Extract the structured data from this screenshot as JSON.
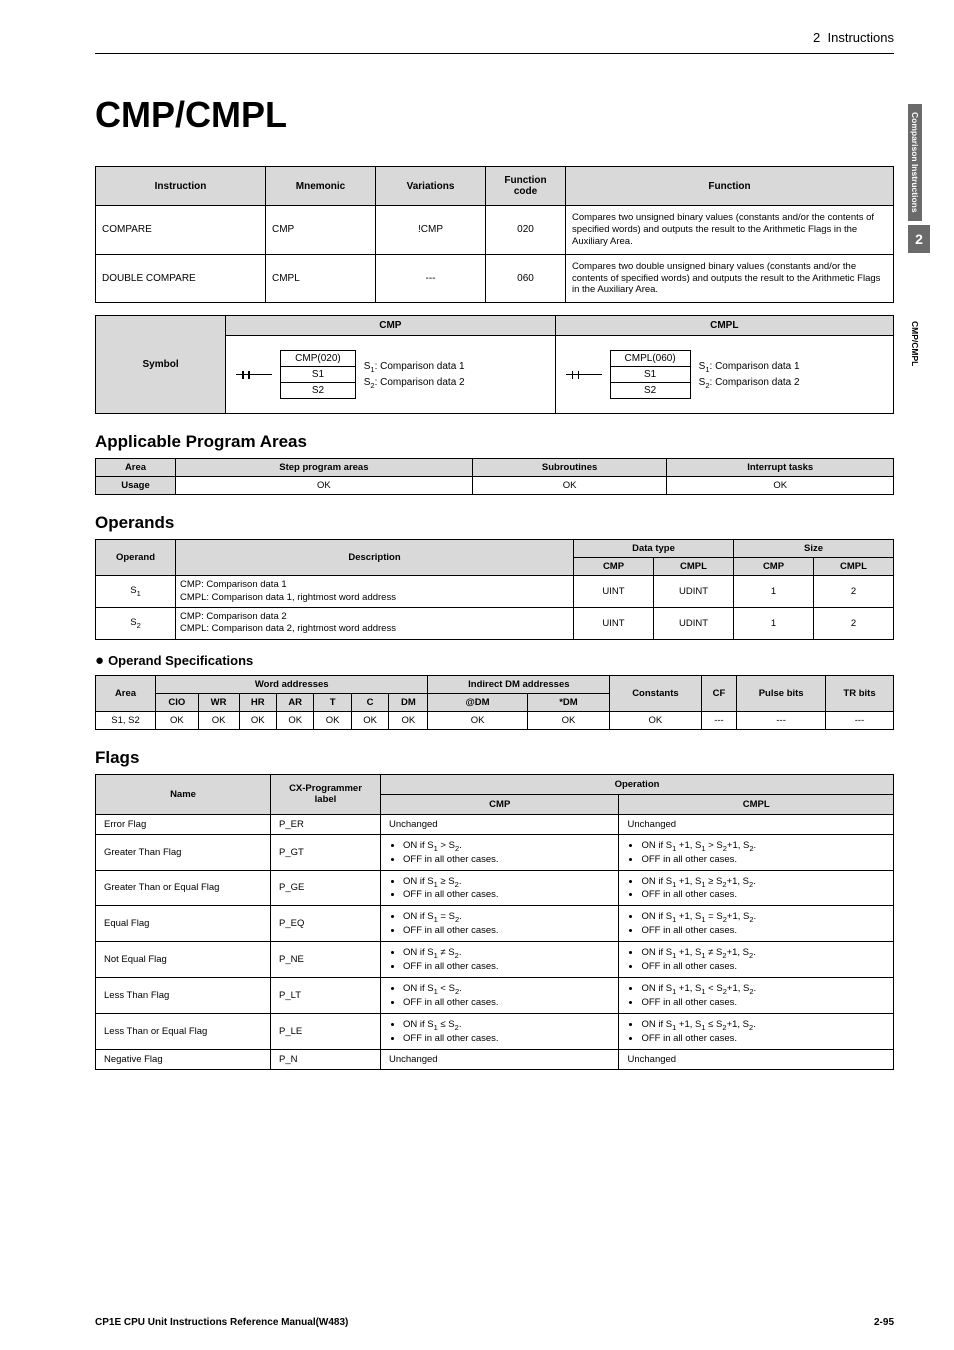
{
  "header": {
    "chapter": "2",
    "chapter_title": "Instructions"
  },
  "title": "CMP/CMPL",
  "side": {
    "group": "Comparison Instructions",
    "num": "2",
    "page_label": "CMP/CMPL"
  },
  "instr_table": {
    "headers": [
      "Instruction",
      "Mnemonic",
      "Variations",
      "Function code",
      "Function"
    ],
    "rows": [
      {
        "name": "COMPARE",
        "mnemonic": "CMP",
        "variation": "!CMP",
        "code": "020",
        "func": "Compares two unsigned binary values (constants and/or the contents of specified words) and outputs the result to the Arithmetic Flags in the Auxiliary Area."
      },
      {
        "name": "DOUBLE COMPARE",
        "mnemonic": "CMPL",
        "variation": "---",
        "code": "060",
        "func": "Compares two double unsigned binary values (constants and/or the contents of specified words) and outputs the result to the Arithmetic Flags in the Auxiliary Area."
      }
    ]
  },
  "symbol": {
    "title": "Symbol",
    "cmp_hdr": "CMP",
    "cmpl_hdr": "CMPL",
    "cmp_block": "CMP(020)",
    "cmpl_block": "CMPL(060)",
    "s1": "S1",
    "s2": "S2",
    "s1_label": "S1: Comparison data 1",
    "s2_label": "S2: Comparison data 2"
  },
  "sections": {
    "applicable": "Applicable Program Areas",
    "operands": "Operands",
    "opspec": "Operand Specifications",
    "flags": "Flags"
  },
  "applicable": {
    "headers": [
      "Area",
      "Step program areas",
      "Subroutines",
      "Interrupt tasks"
    ],
    "usage_label": "Usage",
    "values": [
      "OK",
      "OK",
      "OK"
    ]
  },
  "operands_table": {
    "headers": {
      "operand": "Operand",
      "desc": "Description",
      "dtype": "Data type",
      "size": "Size",
      "cmp": "CMP",
      "cmpl": "CMPL"
    },
    "rows": [
      {
        "op": "S1",
        "desc": "CMP: Comparison data 1\nCMPL: Comparison data 1, rightmost word address",
        "dt_cmp": "UINT",
        "dt_cmpl": "UDINT",
        "sz_cmp": "1",
        "sz_cmpl": "2"
      },
      {
        "op": "S2",
        "desc": "CMP: Comparison data 2\nCMPL: Comparison data 2, rightmost word address",
        "dt_cmp": "UINT",
        "dt_cmpl": "UDINT",
        "sz_cmp": "1",
        "sz_cmpl": "2"
      }
    ]
  },
  "opspec_table": {
    "group_headers": [
      "Area",
      "Word addresses",
      "Indirect DM addresses",
      "Constants",
      "CF",
      "Pulse bits",
      "TR bits"
    ],
    "sub_headers": [
      "CIO",
      "WR",
      "HR",
      "AR",
      "T",
      "C",
      "DM",
      "@DM",
      "*DM"
    ],
    "row_label": "S1, S2",
    "values": [
      "OK",
      "OK",
      "OK",
      "OK",
      "OK",
      "OK",
      "OK",
      "OK",
      "OK",
      "OK",
      "---",
      "---",
      "---"
    ]
  },
  "flags_table": {
    "headers": {
      "name": "Name",
      "label": "CX-Programmer label",
      "op": "Operation",
      "cmp": "CMP",
      "cmpl": "CMPL"
    },
    "rows": [
      {
        "name": "Error Flag",
        "label": "P_ER",
        "cmp": [
          "Unchanged"
        ],
        "cmpl": [
          "Unchanged"
        ]
      },
      {
        "name": "Greater Than Flag",
        "label": "P_GT",
        "cmp": [
          "ON if S1 > S2.",
          "OFF in all other cases."
        ],
        "cmpl": [
          "ON if S1 +1, S1 > S2+1, S2.",
          "OFF in all other cases."
        ]
      },
      {
        "name": "Greater Than or Equal Flag",
        "label": "P_GE",
        "cmp": [
          "ON if S1 ≥ S2.",
          "OFF in all other cases."
        ],
        "cmpl": [
          "ON if S1 +1, S1 ≥ S2+1, S2.",
          "OFF in all other cases."
        ]
      },
      {
        "name": "Equal Flag",
        "label": "P_EQ",
        "cmp": [
          "ON if S1 = S2.",
          "OFF in all other cases."
        ],
        "cmpl": [
          "ON if S1 +1, S1 = S2+1, S2.",
          "OFF in all other cases."
        ]
      },
      {
        "name": "Not Equal Flag",
        "label": "P_NE",
        "cmp": [
          "ON if S1 ≠ S2.",
          "OFF in all other cases."
        ],
        "cmpl": [
          "ON if S1 +1, S1 ≠ S2+1, S2.",
          "OFF in all other cases."
        ]
      },
      {
        "name": "Less Than Flag",
        "label": "P_LT",
        "cmp": [
          "ON if S1 < S2.",
          "OFF in all other cases."
        ],
        "cmpl": [
          "ON if S1 +1, S1 < S2+1, S2.",
          "OFF in all other cases."
        ]
      },
      {
        "name": "Less Than or Equal Flag",
        "label": "P_LE",
        "cmp": [
          "ON if S1 ≤ S2.",
          "OFF in all other cases."
        ],
        "cmpl": [
          "ON if S1 +1, S1 ≤ S2+1, S2.",
          "OFF in all other cases."
        ]
      },
      {
        "name": "Negative Flag",
        "label": "P_N",
        "cmp": [
          "Unchanged"
        ],
        "cmpl": [
          "Unchanged"
        ]
      }
    ]
  },
  "footer": {
    "left": "CP1E CPU Unit Instructions Reference Manual(W483)",
    "right": "2-95"
  }
}
